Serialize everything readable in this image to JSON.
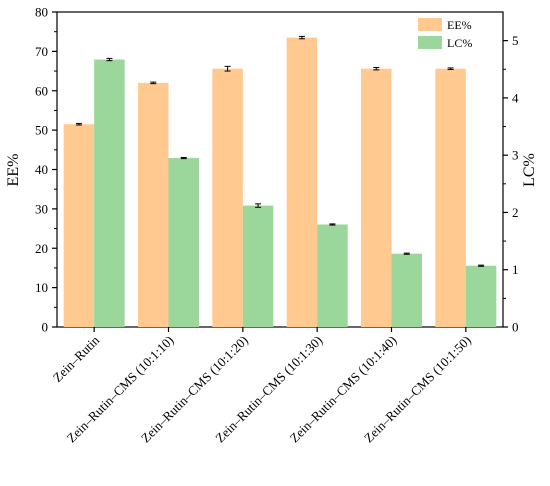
{
  "chart_data": {
    "type": "bar",
    "categories": [
      "Zein–Rutin",
      "Zein–Rutin–CMS (10:1:10)",
      "Zein–Rutin–CMS (10:1:20)",
      "Zein–Rutin–CMS (10:1:30)",
      "Zein–Rutin–CMS (10:1:40)",
      "Zein–Rutin–CMS (10:1:50)"
    ],
    "series": [
      {
        "name": "EE%",
        "axis": "left",
        "color": "#FFC98F",
        "values": [
          51.5,
          62.0,
          65.6,
          73.5,
          65.6,
          65.6
        ],
        "errors": [
          0.2,
          0.2,
          0.6,
          0.3,
          0.3,
          0.2
        ]
      },
      {
        "name": "LC%",
        "axis": "right",
        "color": "#9BD69B",
        "values": [
          4.67,
          2.95,
          2.12,
          1.79,
          1.28,
          1.07
        ],
        "errors": [
          0.02,
          0.01,
          0.03,
          0.01,
          0.01,
          0.01
        ]
      }
    ],
    "ylabel": "EE%",
    "y2label": "LC%",
    "ylim": [
      0,
      80
    ],
    "y2lim": [
      0,
      5.5
    ],
    "yticks": [
      0,
      10,
      20,
      30,
      40,
      50,
      60,
      70,
      80
    ],
    "y2ticks": [
      0,
      1,
      2,
      3,
      4,
      5
    ],
    "legend": "top-right",
    "grid": false
  }
}
